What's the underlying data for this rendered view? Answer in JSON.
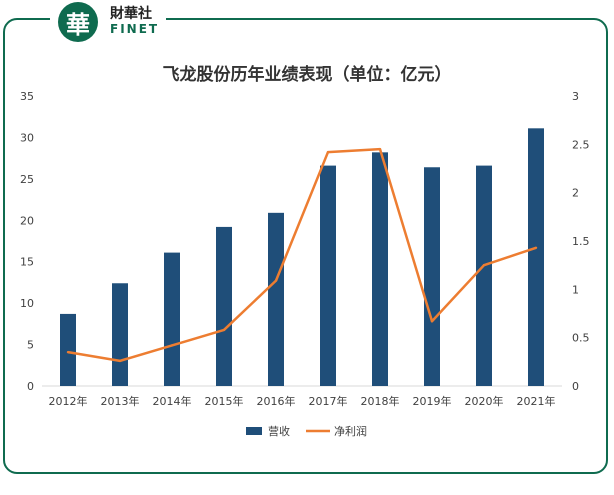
{
  "brand": {
    "badge_char": "華",
    "name_cn": "財華社",
    "name_en": "FINET"
  },
  "chart_data": {
    "type": "bar",
    "title": "飞龙股份历年业绩表现（单位：亿元）",
    "categories": [
      "2012年",
      "2013年",
      "2014年",
      "2015年",
      "2016年",
      "2017年",
      "2018年",
      "2019年",
      "2020年",
      "2021年"
    ],
    "series": [
      {
        "name": "营收",
        "type": "bar",
        "axis": "left",
        "color": "#1f4e79",
        "values": [
          8.7,
          12.4,
          16.1,
          19.2,
          20.9,
          26.6,
          28.2,
          26.4,
          26.6,
          31.1
        ]
      },
      {
        "name": "净利润",
        "type": "line",
        "axis": "right",
        "color": "#ed7d31",
        "values": [
          0.35,
          0.26,
          0.42,
          0.58,
          1.09,
          2.42,
          2.45,
          0.67,
          1.25,
          1.43
        ]
      }
    ],
    "ylim_left": [
      0,
      35
    ],
    "yticks_left": [
      "0",
      "5",
      "10",
      "15",
      "20",
      "25",
      "30",
      "35"
    ],
    "ylim_right": [
      0,
      3
    ],
    "yticks_right": [
      "0",
      "0.5",
      "1",
      "1.5",
      "2",
      "2.5",
      "3"
    ],
    "legend_position": "bottom-center",
    "grid": false
  }
}
